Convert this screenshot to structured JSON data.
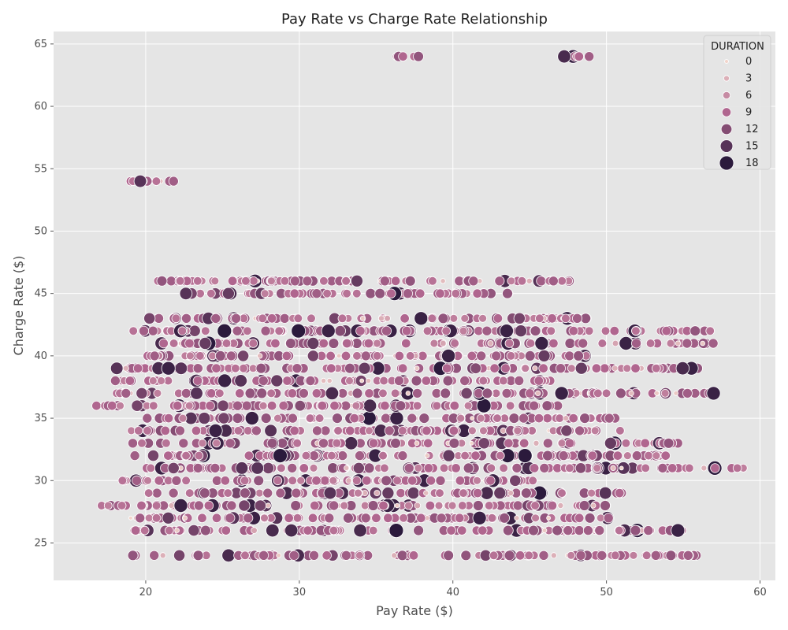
{
  "chart_data": {
    "type": "scatter",
    "title": "Pay Rate vs Charge Rate Relationship",
    "xlabel": "Pay Rate ($)",
    "ylabel": "Charge Rate ($)",
    "xlim": [
      14,
      61
    ],
    "ylim": [
      22,
      66
    ],
    "xticks": [
      20,
      30,
      40,
      50,
      60
    ],
    "yticks": [
      25,
      30,
      35,
      40,
      45,
      50,
      55,
      60,
      65
    ],
    "grid": true,
    "legend": {
      "title": "DURATION",
      "placement": "top-right",
      "entries": [
        {
          "label": "0",
          "value": 0
        },
        {
          "label": "3",
          "value": 3
        },
        {
          "label": "6",
          "value": 6
        },
        {
          "label": "9",
          "value": 9
        },
        {
          "label": "12",
          "value": 12
        },
        {
          "label": "15",
          "value": 15
        },
        {
          "label": "18",
          "value": 18
        }
      ]
    },
    "hue_size_variable": "DURATION",
    "hue_range": [
      0,
      18
    ],
    "bands": [
      {
        "y": 24,
        "x_min": 19,
        "x_max": 56
      },
      {
        "y": 26,
        "x_min": 19,
        "x_max": 55
      },
      {
        "y": 27,
        "x_min": 19,
        "x_max": 51
      },
      {
        "y": 28,
        "x_min": 17,
        "x_max": 51
      },
      {
        "y": 29,
        "x_min": 20,
        "x_max": 51
      },
      {
        "y": 30,
        "x_min": 18,
        "x_max": 46
      },
      {
        "y": 31,
        "x_min": 20,
        "x_max": 59
      },
      {
        "y": 32,
        "x_min": 19,
        "x_max": 54
      },
      {
        "y": 33,
        "x_min": 19,
        "x_max": 55
      },
      {
        "y": 34,
        "x_min": 19,
        "x_max": 51
      },
      {
        "y": 35,
        "x_min": 20,
        "x_max": 51
      },
      {
        "y": 36,
        "x_min": 16,
        "x_max": 47
      },
      {
        "y": 37,
        "x_min": 18,
        "x_max": 57
      },
      {
        "y": 38,
        "x_min": 18,
        "x_max": 47
      },
      {
        "y": 39,
        "x_min": 18,
        "x_max": 56
      },
      {
        "y": 40,
        "x_min": 20,
        "x_max": 49
      },
      {
        "y": 41,
        "x_min": 21,
        "x_max": 57
      },
      {
        "y": 42,
        "x_min": 19,
        "x_max": 57
      },
      {
        "y": 43,
        "x_min": 20,
        "x_max": 49
      },
      {
        "y": 45,
        "x_min": 22,
        "x_max": 44
      },
      {
        "y": 46,
        "x_min": 20,
        "x_max": 48
      },
      {
        "y": 54,
        "x_min": 19,
        "x_max": 22
      },
      {
        "y": 64,
        "x_min": 36,
        "x_max": 38
      },
      {
        "y": 64,
        "x_min": 47,
        "x_max": 49
      }
    ],
    "marker_color_light": "#f2d5cc",
    "marker_color_mid": "#b0668f",
    "marker_color_dark": "#2b1a3c",
    "plot_background": "#e5e5e5",
    "grid_color": "#ffffff"
  }
}
